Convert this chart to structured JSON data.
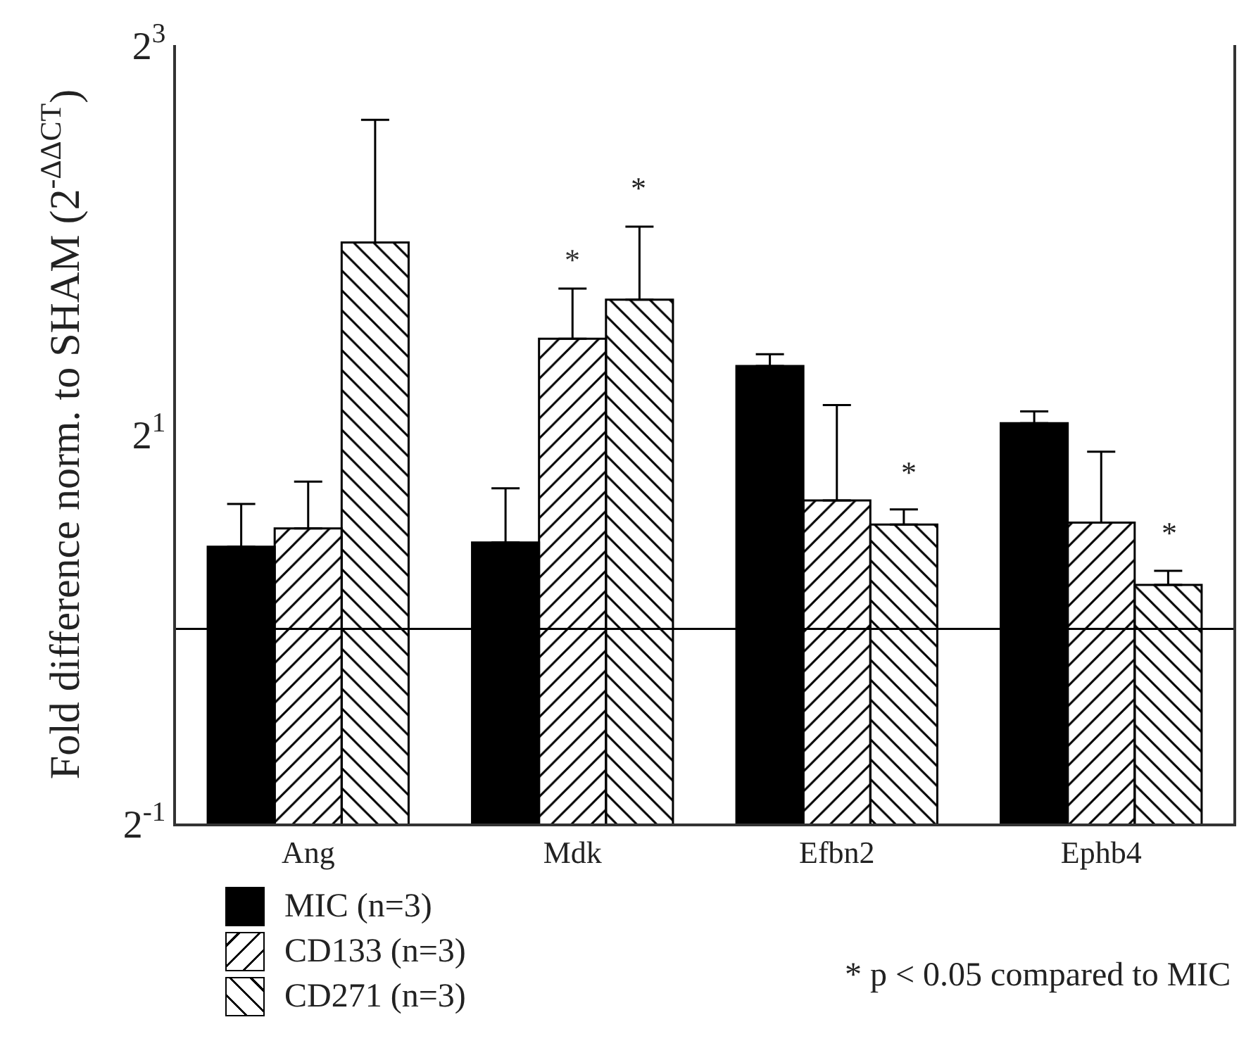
{
  "chart_data": {
    "type": "bar",
    "ylabel": "Fold difference norm. to SHAM (2$^{-ΔΔCT}$)",
    "categories": [
      "Ang",
      "Mdk",
      "Efbn2",
      "Ephb4"
    ],
    "series": [
      {
        "name": "MIC (n=3)",
        "color": "#000000",
        "values": [
          1.34,
          1.36,
          2.55,
          2.08
        ],
        "errors": [
          [
            1.34,
            1.56
          ],
          [
            1.36,
            1.65
          ],
          [
            2.55,
            2.66
          ],
          [
            2.08,
            2.17
          ]
        ]
      },
      {
        "name": "CD133 (n=3)",
        "color": "#000000",
        "values": [
          1.43,
          2.81,
          1.58,
          1.46
        ],
        "errors": [
          [
            1.43,
            1.69
          ],
          [
            2.81,
            3.36
          ],
          [
            1.58,
            2.22
          ],
          [
            1.46,
            1.88
          ]
        ]
      },
      {
        "name": "CD271 (n=3)",
        "color": "#000000",
        "values": [
          3.96,
          3.23,
          1.45,
          1.17
        ],
        "errors": [
          [
            3.96,
            6.13
          ],
          [
            3.23,
            4.19
          ],
          [
            1.45,
            1.53
          ],
          [
            1.17,
            1.23
          ]
        ]
      }
    ],
    "log": true,
    "ylim": [
      0.5,
      8
    ],
    "yticks": [
      {
        "value": 0.5,
        "label": "2$^{-1}$"
      },
      {
        "value": 2,
        "label": "2$^{1}$"
      },
      {
        "value": 8,
        "label": "2$^{3}$"
      }
    ],
    "ref_lines": [
      {
        "axis": "y",
        "value": 1,
        "color": "#000000"
      }
    ],
    "annotations": [
      {
        "text": "*",
        "x": "Mdk",
        "y": 3.36
      },
      "*",
      "*",
      "*",
      "* p < 0.05 compared to MIC"
    ],
    "legend": "bottom left",
    "grid": false
  }
}
